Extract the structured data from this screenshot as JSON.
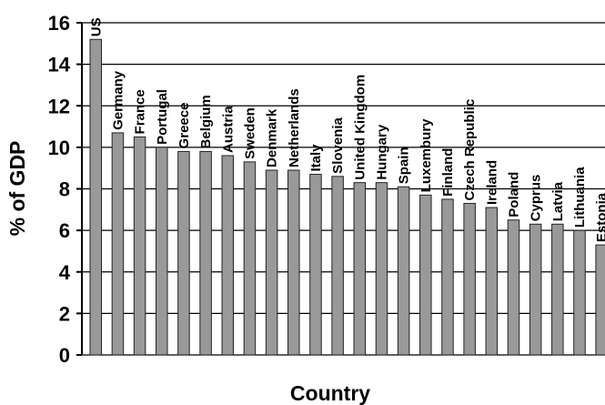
{
  "chart_data": {
    "type": "bar",
    "xlabel": "Country",
    "ylabel": "% of GDP",
    "ylim": [
      0,
      16
    ],
    "yticks": [
      0,
      2,
      4,
      6,
      8,
      10,
      12,
      14,
      16
    ],
    "grid": true,
    "categories": [
      "US",
      "Germany",
      "France",
      "Portugal",
      "Greece",
      "Belgium",
      "Austria",
      "Sweden",
      "Denmark",
      "Netherlands",
      "Italy",
      "Slovenia",
      "United Kingdom",
      "Hungary",
      "Spain",
      "Luxembury",
      "Finland",
      "Czech Republic",
      "Ireland",
      "Poland",
      "Cyprus",
      "Latvia",
      "Lithuania",
      "Estonia"
    ],
    "values": [
      15.2,
      10.7,
      10.5,
      10.0,
      9.8,
      9.8,
      9.6,
      9.3,
      8.9,
      8.9,
      8.7,
      8.6,
      8.3,
      8.3,
      8.1,
      7.7,
      7.5,
      7.3,
      7.1,
      6.5,
      6.3,
      6.3,
      6.0,
      5.3
    ],
    "bar_color": "#999999",
    "bar_edge_color": "#222222",
    "grid_color": "#000000"
  }
}
